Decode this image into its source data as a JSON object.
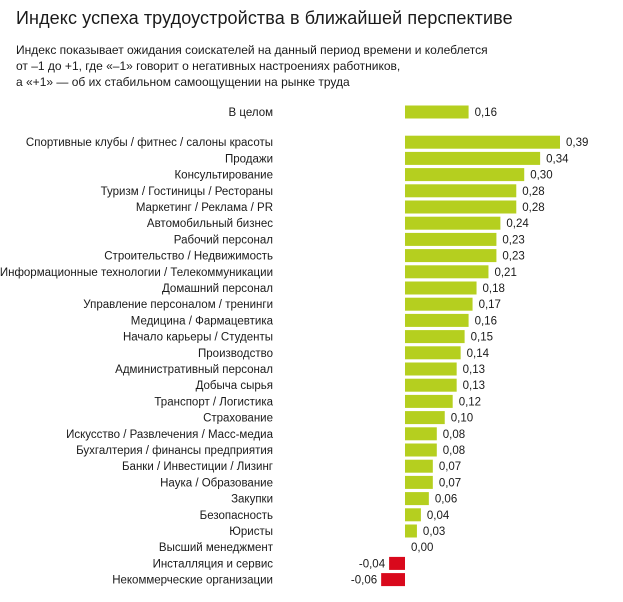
{
  "title": "Индекс успеха трудоустройства в ближайшей перспективе",
  "subtitle_lines": [
    "Индекс показывает ожидания соискателей на данный период времени и колеблется",
    "от –1 до +1, где «–1» говорит о негативных настроениях работников,",
    "а «+1» — об их стабильном самоощущении на рынке труда"
  ],
  "colors": {
    "positive": "#b5cf1f",
    "negative": "#d9091c"
  },
  "chart_data": {
    "type": "bar",
    "orientation": "horizontal",
    "title": "Индекс успеха трудоустройства в ближайшей перспективе",
    "categories": [
      "В целом",
      "Спортивные клубы / фитнес / салоны красоты",
      "Продажи",
      "Консультирование",
      "Туризм / Гостиницы / Рестораны",
      "Маркетинг / Реклама / PR",
      "Автомобильный бизнес",
      "Рабочий персонал",
      "Строительство / Недвижимость",
      "Информационные технологии / Телекоммуникации",
      "Домашний персонал",
      "Управление персоналом / тренинги",
      "Медицина / Фармацевтика",
      "Начало карьеры / Студенты",
      "Производство",
      "Административный персонал",
      "Добыча сырья",
      "Транспорт / Логистика",
      "Страхование",
      "Искусство / Развлечения / Масс-медиа",
      "Бухгалтерия / финансы предприятия",
      "Банки / Инвестиции / Лизинг",
      "Наука / Образование",
      "Закупки",
      "Безопасность",
      "Юристы",
      "Высший менеджмент",
      "Инсталляция и сервис",
      "Некоммерческие организации"
    ],
    "values": [
      0.16,
      0.39,
      0.34,
      0.3,
      0.28,
      0.28,
      0.24,
      0.23,
      0.23,
      0.21,
      0.18,
      0.17,
      0.16,
      0.15,
      0.14,
      0.13,
      0.13,
      0.12,
      0.1,
      0.08,
      0.08,
      0.07,
      0.07,
      0.06,
      0.04,
      0.03,
      0.0,
      -0.04,
      -0.06
    ],
    "value_labels": [
      "0,16",
      "0,39",
      "0,34",
      "0,30",
      "0,28",
      "0,28",
      "0,24",
      "0,23",
      "0,23",
      "0,21",
      "0,18",
      "0,17",
      "0,16",
      "0,15",
      "0,14",
      "0,13",
      "0,13",
      "0,12",
      "0,10",
      "0,08",
      "0,08",
      "0,07",
      "0,07",
      "0,06",
      "0,04",
      "0,03",
      "0,00",
      "-0,04",
      "-0,06"
    ],
    "xlim": [
      -1,
      1
    ],
    "grid": false,
    "legend": "none"
  }
}
